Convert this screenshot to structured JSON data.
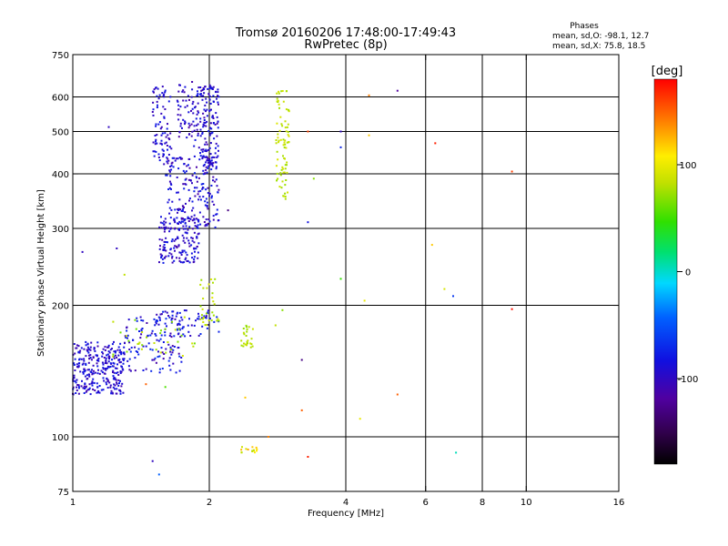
{
  "chart_data": {
    "type": "scatter",
    "title": "Tromsø 20160206 17:48:00-17:49:43",
    "subtitle": "RwPretec (8p)",
    "xlabel": "Frequency [MHz]",
    "ylabel": "Stationary phase Virtual Height [km]",
    "x_scale": "log",
    "y_scale": "log",
    "xlim": [
      1,
      16
    ],
    "ylim": [
      75,
      750
    ],
    "x_ticks": [
      1,
      2,
      4,
      6,
      8,
      10,
      16
    ],
    "x_tick_labels": [
      "1",
      "2",
      "4",
      "6",
      "8",
      "10",
      "16"
    ],
    "y_ticks": [
      75,
      100,
      200,
      300,
      400,
      500,
      600,
      750
    ],
    "y_tick_labels": [
      "75",
      "100",
      "200",
      "300",
      "400",
      "500",
      "600",
      "750"
    ],
    "grid_x": [
      2,
      4,
      6,
      8,
      10
    ],
    "grid_y": [
      100,
      200,
      300,
      400,
      500,
      600
    ],
    "stats_header": "Phases",
    "stats_lines": [
      "mean, sd,O: -98.1, 12.7",
      "mean, sd,X:  75.8, 18.5"
    ],
    "colorbar": {
      "label": "[deg]",
      "range": [
        -180,
        180
      ],
      "ticks": [
        100,
        0,
        -100
      ],
      "tick_labels": [
        "100",
        "0",
        "-100"
      ]
    },
    "clusters": [
      {
        "x": [
          1.0,
          1.3
        ],
        "y": [
          125,
          165
        ],
        "phase": -105,
        "count": 300,
        "spread": 12
      },
      {
        "x": [
          1.3,
          1.75
        ],
        "y": [
          140,
          190
        ],
        "phase": -100,
        "count": 120,
        "spread": 18
      },
      {
        "x": [
          1.5,
          2.1
        ],
        "y": [
          170,
          195
        ],
        "phase": -100,
        "count": 70,
        "spread": 15
      },
      {
        "x": [
          1.55,
          1.9
        ],
        "y": [
          250,
          320
        ],
        "phase": -105,
        "count": 160,
        "spread": 12
      },
      {
        "x": [
          1.6,
          2.1
        ],
        "y": [
          300,
          440
        ],
        "phase": -105,
        "count": 200,
        "spread": 14
      },
      {
        "x": [
          1.85,
          2.1
        ],
        "y": [
          420,
          640
        ],
        "phase": -105,
        "count": 150,
        "spread": 10
      },
      {
        "x": [
          1.5,
          1.65
        ],
        "y": [
          420,
          640
        ],
        "phase": -105,
        "count": 80,
        "spread": 10
      },
      {
        "x": [
          1.7,
          1.85
        ],
        "y": [
          480,
          650
        ],
        "phase": -110,
        "count": 50,
        "spread": 10
      },
      {
        "x": [
          2.8,
          3.0
        ],
        "y": [
          350,
          620
        ],
        "phase": 80,
        "count": 80,
        "spread": 14
      },
      {
        "x": [
          2.35,
          2.5
        ],
        "y": [
          160,
          180
        ],
        "phase": 75,
        "count": 25,
        "spread": 12
      },
      {
        "x": [
          1.2,
          1.9
        ],
        "y": [
          150,
          190
        ],
        "phase": 70,
        "count": 35,
        "spread": 20
      },
      {
        "x": [
          1.9,
          2.1
        ],
        "y": [
          180,
          230
        ],
        "phase": 80,
        "count": 30,
        "spread": 18
      },
      {
        "x": [
          2.35,
          2.55
        ],
        "y": [
          92,
          95
        ],
        "phase": 100,
        "count": 15,
        "spread": 30
      }
    ],
    "outliers": [
      {
        "x": 1.2,
        "y": 512,
        "phase": -110
      },
      {
        "x": 1.05,
        "y": 265,
        "phase": -110
      },
      {
        "x": 1.25,
        "y": 270,
        "phase": -110
      },
      {
        "x": 1.3,
        "y": 235,
        "phase": 80
      },
      {
        "x": 1.5,
        "y": 88,
        "phase": -110
      },
      {
        "x": 1.55,
        "y": 82,
        "phase": -60
      },
      {
        "x": 1.6,
        "y": 130,
        "phase": 40
      },
      {
        "x": 1.45,
        "y": 132,
        "phase": 150
      },
      {
        "x": 2.2,
        "y": 330,
        "phase": -130
      },
      {
        "x": 3.3,
        "y": 500,
        "phase": 160
      },
      {
        "x": 3.3,
        "y": 310,
        "phase": -100
      },
      {
        "x": 3.4,
        "y": 390,
        "phase": 60
      },
      {
        "x": 3.9,
        "y": 500,
        "phase": -110
      },
      {
        "x": 3.9,
        "y": 460,
        "phase": -90
      },
      {
        "x": 3.9,
        "y": 230,
        "phase": 30
      },
      {
        "x": 3.2,
        "y": 150,
        "phase": -130
      },
      {
        "x": 3.2,
        "y": 115,
        "phase": 150
      },
      {
        "x": 3.3,
        "y": 90,
        "phase": 170
      },
      {
        "x": 4.3,
        "y": 110,
        "phase": 100
      },
      {
        "x": 4.5,
        "y": 605,
        "phase": 140
      },
      {
        "x": 4.5,
        "y": 490,
        "phase": 120
      },
      {
        "x": 4.4,
        "y": 205,
        "phase": 100
      },
      {
        "x": 5.2,
        "y": 620,
        "phase": -120
      },
      {
        "x": 5.2,
        "y": 125,
        "phase": 150
      },
      {
        "x": 6.3,
        "y": 470,
        "phase": 170
      },
      {
        "x": 6.2,
        "y": 275,
        "phase": 120
      },
      {
        "x": 6.6,
        "y": 218,
        "phase": 90
      },
      {
        "x": 6.9,
        "y": 210,
        "phase": -80
      },
      {
        "x": 7.0,
        "y": 92,
        "phase": -10
      },
      {
        "x": 9.3,
        "y": 405,
        "phase": 160
      },
      {
        "x": 9.3,
        "y": 196,
        "phase": 175
      },
      {
        "x": 2.8,
        "y": 180,
        "phase": 80
      },
      {
        "x": 2.9,
        "y": 195,
        "phase": 60
      },
      {
        "x": 2.7,
        "y": 100,
        "phase": 140
      },
      {
        "x": 2.4,
        "y": 123,
        "phase": 120
      }
    ]
  }
}
